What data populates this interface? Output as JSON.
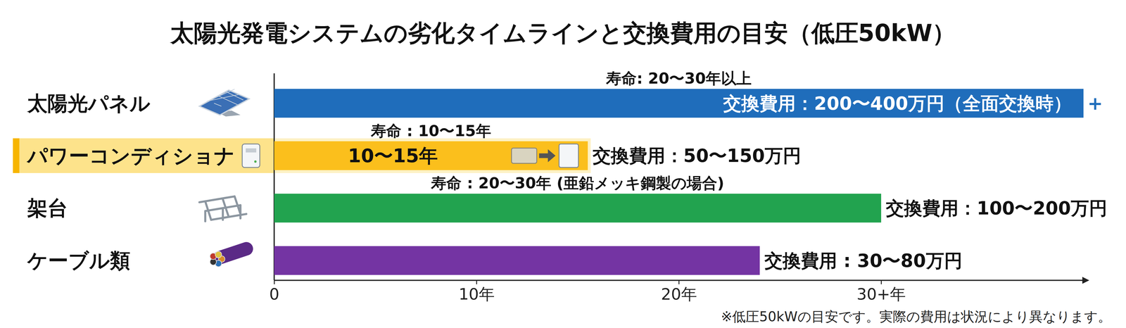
{
  "chart_data": {
    "type": "bar",
    "orientation": "horizontal",
    "title": "太陽光発電システムの劣化タイムラインと交換費用の目安（低圧50kW）",
    "categories": [
      "太陽光パネル",
      "パワーコンディショナ",
      "架台",
      "ケーブル類"
    ],
    "values": [
      40,
      15.5,
      30,
      24
    ],
    "colors": [
      "#1f6dbb",
      "#fbbf1c",
      "#22a34f",
      "#7434a3"
    ],
    "xlim": [
      0,
      40
    ],
    "xticks": [
      0,
      {
        "value": 10,
        "label": "10年"
      },
      {
        "value": 20,
        "label": "20年"
      },
      {
        "value": 30,
        "label": "30+年"
      }
    ],
    "lifespan_labels": [
      "寿命: 20〜30年以上",
      "寿命 : 10〜15年",
      "寿命 : 20〜30年 (亜鉛メッキ鋼製の場合)",
      null
    ],
    "bar_labels": [
      null,
      "10〜15年",
      null,
      null
    ],
    "cost_labels": [
      "交換費用：200〜400万円（全面交換時）",
      "交換費用：50〜150万円",
      "交換費用：100〜200万円",
      "交換費用 : 30〜80万円"
    ],
    "end_marks": [
      "+",
      null,
      null,
      null
    ],
    "note": "※低圧50kWの目安です。実際の費用は状況により異なります。"
  }
}
